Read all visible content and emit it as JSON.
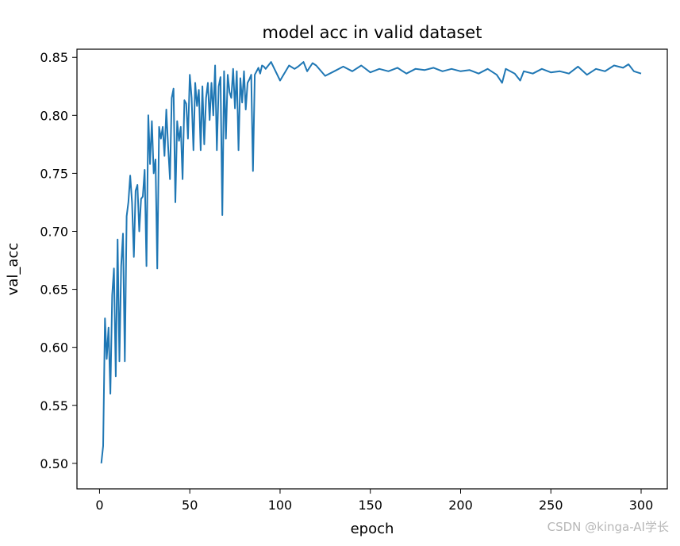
{
  "chart_data": {
    "type": "line",
    "title": "model acc in valid dataset",
    "xlabel": "epoch",
    "ylabel": "val_acc",
    "xlim": [
      -12.5,
      314.5
    ],
    "ylim": [
      0.478,
      0.857
    ],
    "xticks": [
      0,
      50,
      100,
      150,
      200,
      250,
      300
    ],
    "xtick_labels": [
      "0",
      "50",
      "100",
      "150",
      "200",
      "250",
      "300"
    ],
    "yticks": [
      0.5,
      0.55,
      0.6,
      0.65,
      0.7,
      0.75,
      0.8,
      0.85
    ],
    "ytick_labels": [
      "0.50",
      "0.55",
      "0.60",
      "0.65",
      "0.70",
      "0.75",
      "0.80",
      "0.85"
    ],
    "grid": false,
    "series": [
      {
        "color": "#1f77b4",
        "x": [
          1,
          2,
          3,
          4,
          5,
          6,
          7,
          8,
          9,
          10,
          11,
          12,
          13,
          14,
          15,
          16,
          17,
          18,
          19,
          20,
          21,
          22,
          23,
          24,
          25,
          26,
          27,
          28,
          29,
          30,
          31,
          32,
          33,
          34,
          35,
          36,
          37,
          38,
          39,
          40,
          41,
          42,
          43,
          44,
          45,
          46,
          47,
          48,
          49,
          50,
          51,
          52,
          53,
          54,
          55,
          56,
          57,
          58,
          59,
          60,
          61,
          62,
          63,
          64,
          65,
          66,
          67,
          68,
          69,
          70,
          71,
          72,
          73,
          74,
          75,
          76,
          77,
          78,
          79,
          80,
          81,
          82,
          83,
          84,
          85,
          86,
          87,
          88,
          89,
          90,
          91,
          92,
          95,
          100,
          105,
          108,
          110,
          113,
          115,
          118,
          120,
          125,
          130,
          135,
          140,
          145,
          150,
          155,
          160,
          165,
          170,
          175,
          180,
          185,
          190,
          195,
          200,
          205,
          210,
          215,
          220,
          223,
          225,
          230,
          233,
          235,
          240,
          245,
          250,
          255,
          260,
          265,
          270,
          275,
          280,
          285,
          290,
          293,
          296,
          300
        ],
        "y": [
          0.5,
          0.515,
          0.625,
          0.59,
          0.617,
          0.56,
          0.645,
          0.668,
          0.575,
          0.693,
          0.588,
          0.67,
          0.698,
          0.588,
          0.713,
          0.725,
          0.748,
          0.725,
          0.678,
          0.735,
          0.74,
          0.7,
          0.728,
          0.73,
          0.753,
          0.67,
          0.8,
          0.758,
          0.795,
          0.75,
          0.762,
          0.668,
          0.79,
          0.78,
          0.79,
          0.765,
          0.805,
          0.773,
          0.745,
          0.815,
          0.823,
          0.725,
          0.795,
          0.778,
          0.79,
          0.745,
          0.813,
          0.81,
          0.78,
          0.835,
          0.815,
          0.77,
          0.828,
          0.808,
          0.822,
          0.77,
          0.825,
          0.775,
          0.815,
          0.828,
          0.796,
          0.828,
          0.8,
          0.843,
          0.77,
          0.825,
          0.833,
          0.714,
          0.838,
          0.78,
          0.835,
          0.82,
          0.815,
          0.84,
          0.806,
          0.838,
          0.77,
          0.832,
          0.811,
          0.838,
          0.805,
          0.828,
          0.831,
          0.835,
          0.752,
          0.835,
          0.838,
          0.841,
          0.836,
          0.843,
          0.842,
          0.84,
          0.846,
          0.83,
          0.843,
          0.84,
          0.842,
          0.846,
          0.838,
          0.845,
          0.843,
          0.834,
          0.838,
          0.842,
          0.838,
          0.843,
          0.837,
          0.84,
          0.838,
          0.841,
          0.836,
          0.84,
          0.839,
          0.841,
          0.838,
          0.84,
          0.838,
          0.839,
          0.836,
          0.84,
          0.835,
          0.828,
          0.84,
          0.836,
          0.83,
          0.838,
          0.836,
          0.84,
          0.837,
          0.838,
          0.836,
          0.842,
          0.835,
          0.84,
          0.838,
          0.843,
          0.841,
          0.844,
          0.838,
          0.836
        ]
      }
    ]
  },
  "watermark": "CSDN @kinga-AI学长"
}
